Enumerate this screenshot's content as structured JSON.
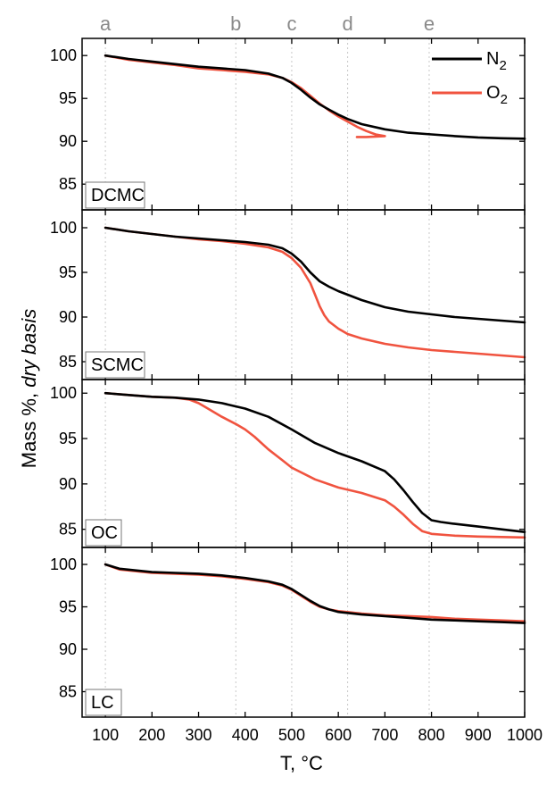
{
  "chart_data": {
    "type": "line",
    "xlabel": "T, °C",
    "ylabel_main": "Mass %, ",
    "ylabel_italic": "dry basis",
    "xlim": [
      50,
      1000
    ],
    "x_ticks": [
      100,
      200,
      300,
      400,
      500,
      600,
      700,
      800,
      900,
      1000
    ],
    "markers": [
      {
        "label": "a",
        "x": 100
      },
      {
        "label": "b",
        "x": 380
      },
      {
        "label": "c",
        "x": 500
      },
      {
        "label": "d",
        "x": 620
      },
      {
        "label": "e",
        "x": 795
      }
    ],
    "legend": {
      "placement": "top-right",
      "entries": [
        {
          "base": "N",
          "sub": "2",
          "color": "#000000"
        },
        {
          "base": "O",
          "sub": "2",
          "color": "#f0533f"
        }
      ]
    },
    "panels": [
      {
        "label": "DCMC",
        "ylim": [
          82,
          102
        ],
        "y_ticks": [
          85,
          90,
          95,
          100
        ],
        "series": [
          {
            "key": "N2",
            "color": "#000000",
            "x": [
              100,
              150,
              200,
              250,
              300,
              350,
              400,
              450,
              480,
              500,
              520,
              540,
              560,
              580,
              600,
              620,
              650,
              700,
              750,
              800,
              850,
              900,
              950,
              1000
            ],
            "y": [
              100,
              99.6,
              99.3,
              99.0,
              98.7,
              98.5,
              98.3,
              97.9,
              97.4,
              96.8,
              96.0,
              95.1,
              94.3,
              93.7,
              93.1,
              92.6,
              92.0,
              91.4,
              91.0,
              90.8,
              90.6,
              90.45,
              90.35,
              90.3
            ]
          },
          {
            "key": "O2",
            "color": "#f0533f",
            "x": [
              100,
              150,
              200,
              250,
              300,
              350,
              400,
              450,
              480,
              500,
              520,
              540,
              560,
              580,
              600,
              620,
              640,
              660,
              680,
              700,
              660,
              640
            ],
            "y": [
              100,
              99.5,
              99.2,
              98.9,
              98.5,
              98.3,
              98.1,
              97.8,
              97.4,
              96.9,
              96.2,
              95.3,
              94.4,
              93.6,
              92.9,
              92.3,
              91.7,
              91.2,
              90.8,
              90.6,
              90.5,
              90.5
            ]
          }
        ]
      },
      {
        "label": "SCMC",
        "ylim": [
          83,
          102
        ],
        "y_ticks": [
          85,
          90,
          95,
          100
        ],
        "series": [
          {
            "key": "N2",
            "color": "#000000",
            "x": [
              100,
              150,
              200,
              250,
              300,
              350,
              400,
              450,
              480,
              500,
              520,
              540,
              560,
              580,
              600,
              650,
              700,
              750,
              800,
              850,
              900,
              950,
              1000
            ],
            "y": [
              100,
              99.6,
              99.3,
              99.0,
              98.8,
              98.6,
              98.4,
              98.1,
              97.7,
              97.1,
              96.2,
              95.0,
              94.0,
              93.4,
              92.9,
              91.9,
              91.1,
              90.6,
              90.3,
              90.0,
              89.8,
              89.6,
              89.4
            ]
          },
          {
            "key": "O2",
            "color": "#f0533f",
            "x": [
              100,
              150,
              200,
              250,
              300,
              350,
              400,
              450,
              480,
              500,
              520,
              540,
              550,
              560,
              570,
              580,
              600,
              620,
              650,
              700,
              750,
              800,
              850,
              900,
              950,
              1000
            ],
            "y": [
              100,
              99.6,
              99.3,
              99.0,
              98.7,
              98.5,
              98.2,
              97.8,
              97.3,
              96.6,
              95.5,
              93.8,
              92.5,
              91.2,
              90.2,
              89.5,
              88.7,
              88.1,
              87.6,
              87.0,
              86.6,
              86.3,
              86.1,
              85.9,
              85.7,
              85.5
            ]
          }
        ]
      },
      {
        "label": "OC",
        "ylim": [
          83,
          101.5
        ],
        "y_ticks": [
          85,
          90,
          95,
          100
        ],
        "series": [
          {
            "key": "N2",
            "color": "#000000",
            "x": [
              100,
              150,
              200,
              250,
              300,
              350,
              400,
              450,
              500,
              550,
              600,
              650,
              700,
              720,
              740,
              760,
              780,
              800,
              820,
              850,
              900,
              950,
              1000
            ],
            "y": [
              100,
              99.8,
              99.6,
              99.5,
              99.3,
              98.9,
              98.3,
              97.4,
              96.0,
              94.5,
              93.4,
              92.5,
              91.4,
              90.5,
              89.3,
              88.0,
              86.8,
              86.0,
              85.8,
              85.6,
              85.3,
              85.0,
              84.7
            ]
          },
          {
            "key": "O2",
            "color": "#f0533f",
            "x": [
              100,
              150,
              200,
              250,
              280,
              300,
              320,
              350,
              380,
              400,
              420,
              450,
              480,
              500,
              550,
              600,
              650,
              700,
              720,
              740,
              760,
              780,
              800,
              850,
              900,
              950,
              1000
            ],
            "y": [
              100,
              99.8,
              99.6,
              99.5,
              99.3,
              98.9,
              98.3,
              97.4,
              96.6,
              96.0,
              95.2,
              93.8,
              92.6,
              91.8,
              90.5,
              89.6,
              89.0,
              88.2,
              87.5,
              86.6,
              85.6,
              84.8,
              84.5,
              84.3,
              84.2,
              84.15,
              84.1
            ]
          }
        ]
      },
      {
        "label": "LC",
        "ylim": [
          82,
          102
        ],
        "y_ticks": [
          85,
          90,
          95,
          100
        ],
        "series": [
          {
            "key": "N2",
            "color": "#000000",
            "x": [
              100,
              130,
              200,
              250,
              300,
              350,
              400,
              450,
              480,
              500,
              520,
              540,
              560,
              580,
              600,
              650,
              700,
              750,
              800,
              850,
              900,
              950,
              1000
            ],
            "y": [
              100,
              99.5,
              99.1,
              99.0,
              98.9,
              98.7,
              98.4,
              98.0,
              97.6,
              97.1,
              96.4,
              95.7,
              95.1,
              94.7,
              94.4,
              94.1,
              93.9,
              93.7,
              93.5,
              93.4,
              93.3,
              93.2,
              93.1
            ]
          },
          {
            "key": "O2",
            "color": "#f0533f",
            "x": [
              100,
              130,
              200,
              250,
              300,
              350,
              400,
              450,
              480,
              500,
              520,
              540,
              560,
              580,
              600,
              650,
              700,
              750,
              800,
              850,
              900,
              950,
              1000
            ],
            "y": [
              100,
              99.4,
              99.0,
              98.9,
              98.8,
              98.6,
              98.3,
              97.9,
              97.5,
              97.0,
              96.3,
              95.6,
              95.0,
              94.7,
              94.5,
              94.2,
              94.0,
              93.9,
              93.8,
              93.6,
              93.5,
              93.4,
              93.3
            ]
          }
        ]
      }
    ]
  }
}
